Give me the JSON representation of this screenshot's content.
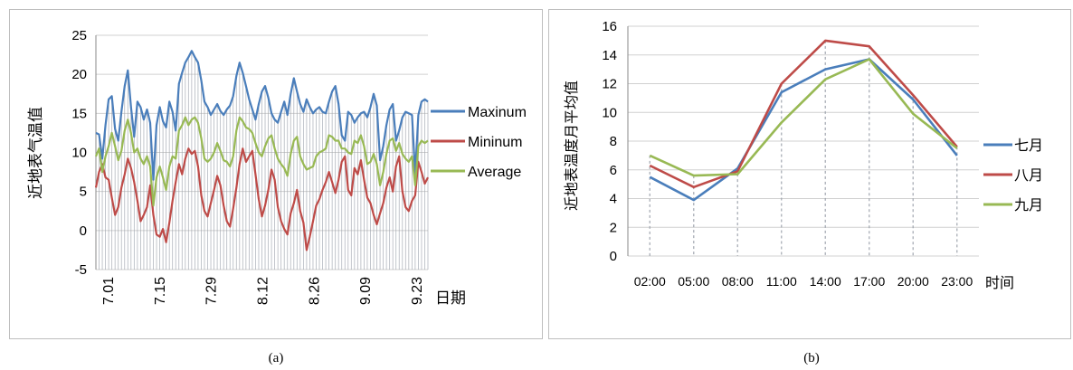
{
  "captions": {
    "a": "(a)",
    "b": "(b)"
  },
  "chart_data": [
    {
      "type": "line",
      "title": "",
      "xlabel": "日期",
      "ylabel": "近地表气温值",
      "ylim": [
        -5,
        25
      ],
      "yticks": [
        "-5",
        "0",
        "5",
        "10",
        "15",
        "20",
        "25"
      ],
      "xticks": [
        "7.01",
        "7.15",
        "7.29",
        "8.12",
        "8.26",
        "9.09",
        "9.23"
      ],
      "legend_position": "right",
      "grid": true,
      "colors": {
        "Maxinum": "#4a7ebb",
        "Mininum": "#be4b48",
        "Average": "#98b954",
        "drop_lines": "#9aa0aa"
      },
      "series": [
        {
          "name": "Maxinum",
          "values": [
            12.5,
            12.3,
            9.2,
            13.5,
            16.8,
            17.2,
            13.0,
            11.5,
            15.2,
            18.5,
            20.5,
            15.8,
            12.0,
            16.5,
            15.8,
            14.2,
            15.5,
            13.8,
            6.5,
            13.5,
            15.8,
            14.0,
            13.2,
            16.5,
            15.2,
            12.8,
            18.8,
            20.2,
            21.5,
            22.2,
            23.0,
            22.2,
            21.5,
            19.2,
            16.5,
            15.8,
            14.8,
            15.5,
            16.2,
            15.3,
            14.8,
            15.5,
            16.0,
            17.2,
            19.8,
            21.5,
            20.2,
            18.5,
            16.8,
            15.5,
            14.2,
            16.2,
            17.8,
            18.5,
            17.0,
            15.0,
            14.2,
            13.8,
            15.2,
            16.5,
            14.8,
            17.5,
            19.5,
            17.8,
            16.2,
            15.2,
            16.8,
            15.8,
            15.0,
            15.5,
            15.8,
            15.2,
            15.0,
            16.5,
            17.8,
            18.5,
            16.2,
            12.2,
            11.5,
            15.2,
            14.8,
            13.8,
            14.5,
            15.0,
            15.2,
            14.5,
            15.8,
            17.5,
            16.0,
            9.0,
            10.8,
            13.5,
            15.5,
            16.2,
            11.5,
            12.8,
            14.5,
            15.2,
            15.0,
            14.8,
            7.2,
            14.8,
            16.5,
            16.8,
            16.5
          ]
        },
        {
          "name": "Mininum",
          "values": [
            5.5,
            7.5,
            8.5,
            6.8,
            6.5,
            4.2,
            2.0,
            3.0,
            5.5,
            7.2,
            9.2,
            8.0,
            6.2,
            3.8,
            1.2,
            2.0,
            3.0,
            5.8,
            2.0,
            -0.5,
            -0.8,
            0.2,
            -1.5,
            1.0,
            3.8,
            6.2,
            8.5,
            7.2,
            9.2,
            10.5,
            9.8,
            10.2,
            8.2,
            4.5,
            2.5,
            1.8,
            3.5,
            5.2,
            7.0,
            5.8,
            3.2,
            1.2,
            0.5,
            2.8,
            5.5,
            8.5,
            10.5,
            8.8,
            9.5,
            10.2,
            7.2,
            4.0,
            1.8,
            3.2,
            5.2,
            7.8,
            6.5,
            3.0,
            1.2,
            0.2,
            -0.5,
            2.2,
            3.5,
            5.2,
            2.5,
            1.0,
            -2.5,
            -0.8,
            1.2,
            3.2,
            4.0,
            5.2,
            6.2,
            7.5,
            6.2,
            4.8,
            6.5,
            8.8,
            9.5,
            5.2,
            4.5,
            8.0,
            7.2,
            9.0,
            6.5,
            4.2,
            3.5,
            2.0,
            0.8,
            2.2,
            3.5,
            5.5,
            6.8,
            5.0,
            8.2,
            9.5,
            5.0,
            3.0,
            2.5,
            3.8,
            4.5,
            8.8,
            7.5,
            6.0,
            6.8
          ]
        },
        {
          "name": "Average",
          "values": [
            9.5,
            10.5,
            7.5,
            9.5,
            10.8,
            12.5,
            10.8,
            9.0,
            10.2,
            12.8,
            14.2,
            12.5,
            10.0,
            10.5,
            9.2,
            8.5,
            9.5,
            8.2,
            3.2,
            6.8,
            8.2,
            6.8,
            5.2,
            8.2,
            9.5,
            9.2,
            12.8,
            13.5,
            14.5,
            13.5,
            14.2,
            14.5,
            13.8,
            11.8,
            9.2,
            8.8,
            9.2,
            10.0,
            11.2,
            10.2,
            9.0,
            8.8,
            8.2,
            9.5,
            12.8,
            14.5,
            14.0,
            13.2,
            13.0,
            12.5,
            11.2,
            10.0,
            9.5,
            10.8,
            11.8,
            12.2,
            10.5,
            9.2,
            8.5,
            8.0,
            7.0,
            9.8,
            11.5,
            12.0,
            9.5,
            8.5,
            7.8,
            8.0,
            8.2,
            9.5,
            10.0,
            10.2,
            10.5,
            12.2,
            12.0,
            11.5,
            11.5,
            10.5,
            10.5,
            10.0,
            9.8,
            11.5,
            11.2,
            12.2,
            10.8,
            8.5,
            8.8,
            9.8,
            8.5,
            5.8,
            7.5,
            9.8,
            11.5,
            11.8,
            10.2,
            11.2,
            9.8,
            9.2,
            8.8,
            9.5,
            5.8,
            10.8,
            11.5,
            11.2,
            11.5
          ]
        }
      ]
    },
    {
      "type": "line",
      "title": "",
      "xlabel": "时间",
      "ylabel": "近地表温度月平均值",
      "ylim": [
        0,
        16
      ],
      "yticks": [
        "0",
        "2",
        "4",
        "6",
        "8",
        "10",
        "12",
        "14",
        "16"
      ],
      "categories": [
        "02:00",
        "05:00",
        "08:00",
        "11:00",
        "14:00",
        "17:00",
        "20:00",
        "23:00"
      ],
      "legend_position": "right",
      "grid": true,
      "colors": {
        "七月": "#4a7ebb",
        "八月": "#be4b48",
        "九月": "#98b954",
        "drop_lines": "#9aa0aa"
      },
      "series": [
        {
          "name": "七月",
          "values": [
            5.5,
            3.9,
            6.1,
            11.4,
            13.0,
            13.7,
            10.9,
            7.0
          ]
        },
        {
          "name": "八月",
          "values": [
            6.3,
            4.8,
            5.9,
            12.0,
            15.0,
            14.6,
            11.2,
            7.6
          ]
        },
        {
          "name": "九月",
          "values": [
            7.0,
            5.6,
            5.7,
            9.3,
            12.3,
            13.7,
            9.9,
            7.5
          ]
        }
      ]
    }
  ]
}
